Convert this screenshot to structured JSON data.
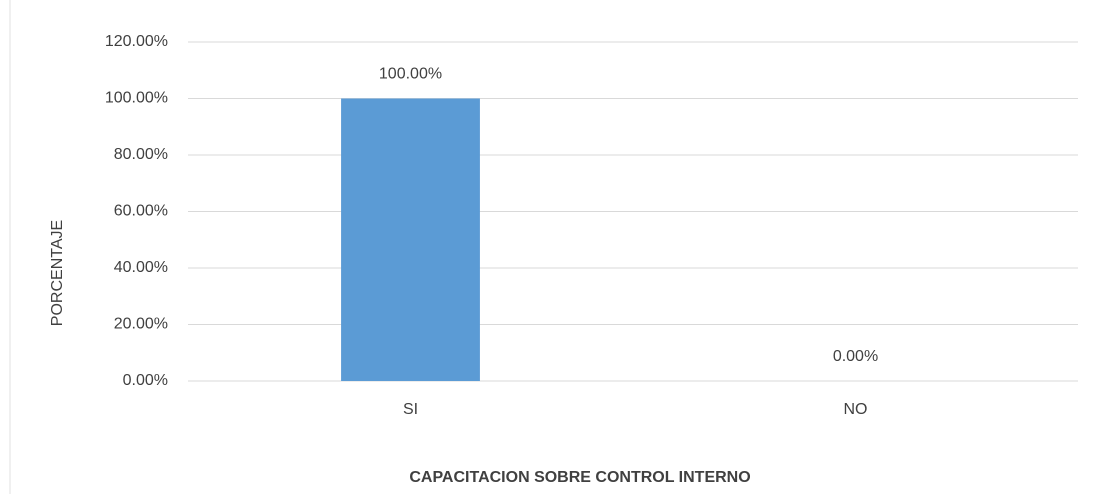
{
  "chart_data": {
    "type": "bar",
    "x_label": "CAPACITACION SOBRE CONTROL INTERNO",
    "y_label": "PORCENTAJE",
    "categories": [
      "SI",
      "NO"
    ],
    "values": [
      100,
      0
    ],
    "value_labels": [
      "100.00%",
      "0.00%"
    ],
    "color": "#5b9bd5",
    "ylim": [
      0,
      120
    ],
    "yticks": [
      {
        "value": 0,
        "label": "0.00%"
      },
      {
        "value": 20,
        "label": "20.00%"
      },
      {
        "value": 40,
        "label": "40.00%"
      },
      {
        "value": 60,
        "label": "60.00%"
      },
      {
        "value": 80,
        "label": "80.00%"
      },
      {
        "value": 100,
        "label": "100.00%"
      },
      {
        "value": 120,
        "label": "120.00%"
      }
    ],
    "grid": true
  }
}
